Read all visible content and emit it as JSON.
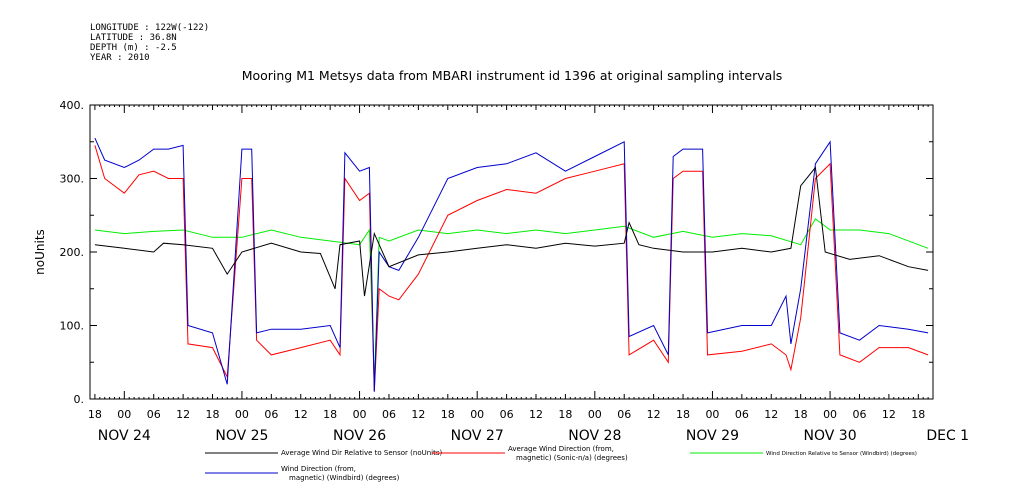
{
  "header": {
    "longitude": "LONGITUDE : 122W(-122)",
    "latitude": "LATITUDE : 36.8N",
    "depth": "DEPTH (m) : -2.5",
    "year": "YEAR : 2010"
  },
  "chart_data": {
    "type": "line",
    "title": "Mooring M1 Metsys data from MBARI instrument id 1396 at original sampling intervals",
    "ylabel": "noUnits",
    "xlabel": "",
    "ylim": [
      0,
      400
    ],
    "xlim_hours": [
      -7,
      165
    ],
    "y_ticks": [
      "0.",
      "100.",
      "200.",
      "300.",
      "400."
    ],
    "x_tick_labels": [
      "18",
      "00",
      "06",
      "12",
      "18",
      "00",
      "06",
      "12",
      "18",
      "00",
      "06",
      "12",
      "18",
      "00",
      "06",
      "12",
      "18",
      "00",
      "06",
      "12",
      "18",
      "00",
      "06",
      "12",
      "18",
      "00",
      "06",
      "12",
      "18"
    ],
    "day_labels": [
      "NOV 24",
      "NOV 25",
      "NOV 26",
      "NOV 27",
      "NOV 28",
      "NOV 29",
      "NOV 30",
      "DEC  1"
    ],
    "grid": false,
    "legend_position": "bottom",
    "series": [
      {
        "name": "Average Wind Dir Relative to Sensor (noUnits)",
        "color": "#000000",
        "points": [
          [
            -6,
            210
          ],
          [
            0,
            205
          ],
          [
            6,
            200
          ],
          [
            8,
            212
          ],
          [
            12,
            210
          ],
          [
            18,
            205
          ],
          [
            21,
            170
          ],
          [
            24,
            200
          ],
          [
            30,
            212
          ],
          [
            36,
            200
          ],
          [
            40,
            198
          ],
          [
            43,
            150
          ],
          [
            44,
            210
          ],
          [
            48,
            215
          ],
          [
            49,
            140
          ],
          [
            51,
            225
          ],
          [
            54,
            180
          ],
          [
            60,
            196
          ],
          [
            66,
            200
          ],
          [
            72,
            205
          ],
          [
            78,
            210
          ],
          [
            84,
            205
          ],
          [
            90,
            212
          ],
          [
            96,
            208
          ],
          [
            102,
            212
          ],
          [
            103,
            240
          ],
          [
            105,
            210
          ],
          [
            108,
            205
          ],
          [
            114,
            200
          ],
          [
            120,
            200
          ],
          [
            126,
            205
          ],
          [
            132,
            200
          ],
          [
            136,
            205
          ],
          [
            138,
            290
          ],
          [
            141,
            315
          ],
          [
            143,
            200
          ],
          [
            148,
            190
          ],
          [
            154,
            195
          ],
          [
            160,
            180
          ],
          [
            164,
            175
          ]
        ]
      },
      {
        "name": "Average Wind Direction (from, magnetic) (Sonic-n/a) (degrees)",
        "color": "#ff0000",
        "points": [
          [
            -6,
            345
          ],
          [
            -4,
            300
          ],
          [
            0,
            280
          ],
          [
            3,
            305
          ],
          [
            6,
            310
          ],
          [
            9,
            300
          ],
          [
            12,
            300
          ],
          [
            13,
            75
          ],
          [
            18,
            70
          ],
          [
            21,
            30
          ],
          [
            24,
            300
          ],
          [
            26,
            300
          ],
          [
            27,
            80
          ],
          [
            30,
            60
          ],
          [
            36,
            70
          ],
          [
            42,
            80
          ],
          [
            44,
            60
          ],
          [
            45,
            300
          ],
          [
            48,
            270
          ],
          [
            50,
            280
          ],
          [
            51,
            10
          ],
          [
            52,
            150
          ],
          [
            54,
            140
          ],
          [
            56,
            135
          ],
          [
            60,
            170
          ],
          [
            66,
            250
          ],
          [
            72,
            270
          ],
          [
            78,
            285
          ],
          [
            84,
            280
          ],
          [
            90,
            300
          ],
          [
            96,
            310
          ],
          [
            102,
            320
          ],
          [
            103,
            60
          ],
          [
            108,
            80
          ],
          [
            111,
            50
          ],
          [
            112,
            300
          ],
          [
            114,
            310
          ],
          [
            118,
            310
          ],
          [
            119,
            60
          ],
          [
            126,
            65
          ],
          [
            132,
            75
          ],
          [
            135,
            60
          ],
          [
            136,
            40
          ],
          [
            138,
            110
          ],
          [
            141,
            300
          ],
          [
            144,
            320
          ],
          [
            146,
            60
          ],
          [
            150,
            50
          ],
          [
            154,
            70
          ],
          [
            160,
            70
          ],
          [
            164,
            60
          ]
        ]
      },
      {
        "name": "Wind Direction Relative to Sensor (Windbird) (degrees)",
        "color": "#00ee00",
        "points": [
          [
            -6,
            230
          ],
          [
            0,
            225
          ],
          [
            6,
            228
          ],
          [
            12,
            230
          ],
          [
            18,
            220
          ],
          [
            24,
            220
          ],
          [
            30,
            230
          ],
          [
            36,
            220
          ],
          [
            42,
            215
          ],
          [
            48,
            210
          ],
          [
            50,
            230
          ],
          [
            51,
            20
          ],
          [
            52,
            220
          ],
          [
            54,
            215
          ],
          [
            60,
            230
          ],
          [
            66,
            225
          ],
          [
            72,
            230
          ],
          [
            78,
            225
          ],
          [
            84,
            230
          ],
          [
            90,
            225
          ],
          [
            96,
            230
          ],
          [
            102,
            235
          ],
          [
            108,
            220
          ],
          [
            114,
            228
          ],
          [
            120,
            220
          ],
          [
            126,
            225
          ],
          [
            132,
            222
          ],
          [
            138,
            210
          ],
          [
            141,
            245
          ],
          [
            144,
            230
          ],
          [
            150,
            230
          ],
          [
            156,
            225
          ],
          [
            164,
            205
          ]
        ]
      },
      {
        "name": "Wind Direction (from, magnetic) (Windbird) (degrees)",
        "color": "#0000cc",
        "points": [
          [
            -6,
            355
          ],
          [
            -4,
            325
          ],
          [
            0,
            315
          ],
          [
            3,
            325
          ],
          [
            6,
            340
          ],
          [
            9,
            340
          ],
          [
            12,
            345
          ],
          [
            13,
            100
          ],
          [
            18,
            90
          ],
          [
            21,
            20
          ],
          [
            24,
            340
          ],
          [
            26,
            340
          ],
          [
            27,
            90
          ],
          [
            30,
            95
          ],
          [
            36,
            95
          ],
          [
            42,
            100
          ],
          [
            44,
            70
          ],
          [
            45,
            335
          ],
          [
            48,
            310
          ],
          [
            50,
            315
          ],
          [
            51,
            10
          ],
          [
            52,
            200
          ],
          [
            54,
            180
          ],
          [
            56,
            175
          ],
          [
            60,
            220
          ],
          [
            66,
            300
          ],
          [
            72,
            315
          ],
          [
            78,
            320
          ],
          [
            84,
            335
          ],
          [
            90,
            310
          ],
          [
            96,
            330
          ],
          [
            102,
            350
          ],
          [
            103,
            85
          ],
          [
            108,
            100
          ],
          [
            111,
            60
          ],
          [
            112,
            330
          ],
          [
            114,
            340
          ],
          [
            118,
            340
          ],
          [
            119,
            90
          ],
          [
            126,
            100
          ],
          [
            132,
            100
          ],
          [
            135,
            140
          ],
          [
            136,
            75
          ],
          [
            138,
            150
          ],
          [
            141,
            320
          ],
          [
            144,
            350
          ],
          [
            146,
            90
          ],
          [
            150,
            80
          ],
          [
            154,
            100
          ],
          [
            160,
            95
          ],
          [
            164,
            90
          ]
        ]
      }
    ]
  }
}
